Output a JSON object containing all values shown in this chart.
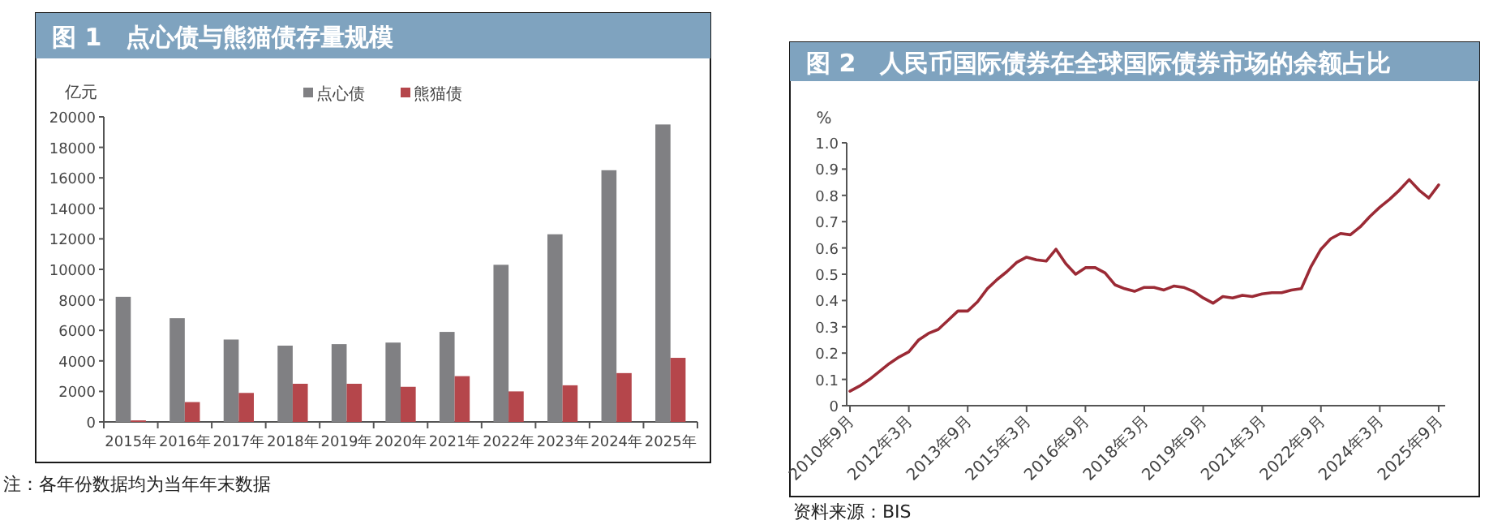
{
  "chart_data": [
    {
      "type": "bar",
      "title": "图 1　点心债与熊猫债存量规模",
      "ylabel": "亿元",
      "legend": "top",
      "grid": false,
      "categories": [
        "2015年",
        "2016年",
        "2017年",
        "2018年",
        "2019年",
        "2020年",
        "2021年",
        "2022年",
        "2023年",
        "2024年",
        "2025年"
      ],
      "series": [
        {
          "name": "点心债",
          "color": "#808083",
          "values": [
            8200,
            6800,
            5400,
            5000,
            5100,
            5200,
            5900,
            10300,
            12300,
            16500,
            19500
          ]
        },
        {
          "name": "熊猫债",
          "color": "#b5464b",
          "values": [
            100,
            1300,
            1900,
            2500,
            2500,
            2300,
            3000,
            2000,
            2400,
            3200,
            4200
          ]
        }
      ],
      "ylim": [
        0,
        20000
      ],
      "yticks": [
        0,
        2000,
        4000,
        6000,
        8000,
        10000,
        12000,
        14000,
        16000,
        18000,
        20000
      ],
      "annotations": [
        "注：各年份数据均为当年年末数据"
      ]
    },
    {
      "type": "line",
      "title": "图 2　人民币国际债券在全球国际债券市场的余额占比",
      "ylabel": "%",
      "grid": false,
      "x": [
        "2010-09",
        "2010-12",
        "2011-03",
        "2011-06",
        "2011-09",
        "2011-12",
        "2012-03",
        "2012-06",
        "2012-09",
        "2012-12",
        "2013-03",
        "2013-06",
        "2013-09",
        "2013-12",
        "2014-03",
        "2014-06",
        "2014-09",
        "2014-12",
        "2015-03",
        "2015-06",
        "2015-09",
        "2015-12",
        "2016-03",
        "2016-06",
        "2016-09",
        "2016-12",
        "2017-03",
        "2017-06",
        "2017-09",
        "2017-12",
        "2018-03",
        "2018-06",
        "2018-09",
        "2018-12",
        "2019-03",
        "2019-06",
        "2019-09",
        "2019-12",
        "2020-03",
        "2020-06",
        "2020-09",
        "2020-12",
        "2021-03",
        "2021-06",
        "2021-09",
        "2021-12",
        "2022-03",
        "2022-06",
        "2022-09",
        "2022-12",
        "2023-03",
        "2023-06",
        "2023-09",
        "2023-12",
        "2024-03",
        "2024-06",
        "2024-09",
        "2024-12",
        "2025-03",
        "2025-06",
        "2025-09"
      ],
      "series": [
        {
          "color": "#9b2a35",
          "values": [
            0.055,
            0.075,
            0.1,
            0.13,
            0.16,
            0.185,
            0.205,
            0.25,
            0.275,
            0.29,
            0.325,
            0.36,
            0.36,
            0.395,
            0.445,
            0.48,
            0.51,
            0.545,
            0.565,
            0.555,
            0.55,
            0.595,
            0.54,
            0.5,
            0.525,
            0.525,
            0.505,
            0.46,
            0.445,
            0.435,
            0.45,
            0.45,
            0.44,
            0.455,
            0.45,
            0.435,
            0.41,
            0.39,
            0.415,
            0.41,
            0.42,
            0.415,
            0.425,
            0.43,
            0.43,
            0.44,
            0.445,
            0.53,
            0.595,
            0.635,
            0.655,
            0.65,
            0.68,
            0.72,
            0.755,
            0.785,
            0.82,
            0.86,
            0.82,
            0.79,
            0.84
          ]
        }
      ],
      "xlim": [
        "2010-08",
        "2025-11"
      ],
      "xticks": [
        {
          "value": "2010-09",
          "label": "2010年9月"
        },
        {
          "value": "2012-03",
          "label": "2012年3月"
        },
        {
          "value": "2013-09",
          "label": "2013年9月"
        },
        {
          "value": "2015-03",
          "label": "2015年3月"
        },
        {
          "value": "2016-09",
          "label": "2016年9月"
        },
        {
          "value": "2018-03",
          "label": "2018年3月"
        },
        {
          "value": "2019-09",
          "label": "2019年9月"
        },
        {
          "value": "2021-03",
          "label": "2021年3月"
        },
        {
          "value": "2022-09",
          "label": "2022年9月"
        },
        {
          "value": "2024-03",
          "label": "2024年3月"
        },
        {
          "value": "2025-09",
          "label": "2025年9月"
        }
      ],
      "ylim": [
        0,
        1.0
      ],
      "yticks": [
        0,
        {
          "value": 0.1,
          "label": "0.1"
        },
        {
          "value": 0.2,
          "label": "0.2"
        },
        {
          "value": 0.3,
          "label": "0.3"
        },
        {
          "value": 0.4,
          "label": "0.4"
        },
        {
          "value": 0.5,
          "label": "0.5"
        },
        {
          "value": 0.6,
          "label": "0.6"
        },
        {
          "value": 0.7,
          "label": "0.7"
        },
        {
          "value": 0.8,
          "label": "0.8"
        },
        {
          "value": 0.9,
          "label": "0.9"
        },
        {
          "value": 1.0,
          "label": "1.0"
        }
      ],
      "annotations": [
        "资料来源：BIS"
      ]
    }
  ]
}
